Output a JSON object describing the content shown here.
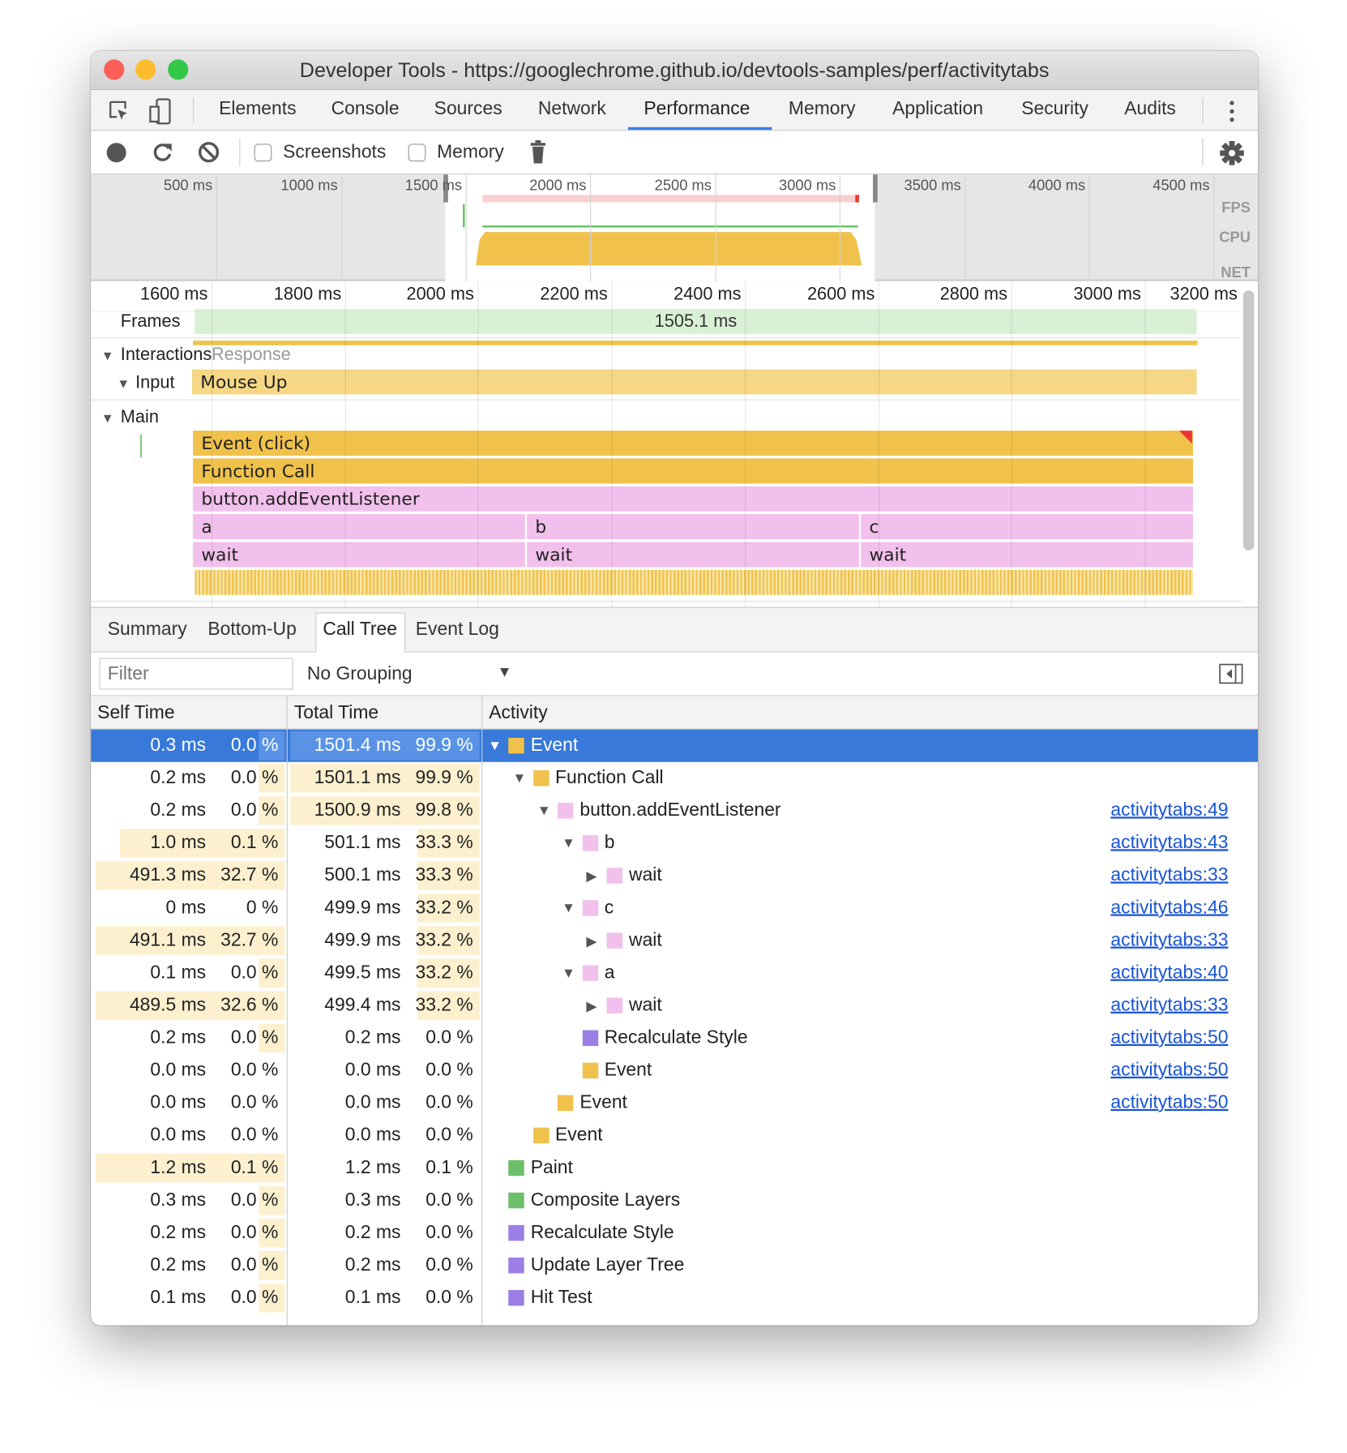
{
  "window": {
    "title": "Developer Tools - https://googlechrome.github.io/devtools-samples/perf/activitytabs",
    "lights": [
      "#fc5f57",
      "#fdbc2e",
      "#34c84a"
    ]
  },
  "tabs": [
    {
      "label": "Elements"
    },
    {
      "label": "Console"
    },
    {
      "label": "Sources"
    },
    {
      "label": "Network"
    },
    {
      "label": "Performance",
      "active": true
    },
    {
      "label": "Memory"
    },
    {
      "label": "Application"
    },
    {
      "label": "Security"
    },
    {
      "label": "Audits"
    }
  ],
  "toolbar": {
    "screenshots_label": "Screenshots",
    "screenshots_checked": false,
    "memory_label": "Memory",
    "memory_checked": false
  },
  "overview": {
    "ticks": [
      "500 ms",
      "1000 ms",
      "1500 ms",
      "2000 ms",
      "2500 ms",
      "3000 ms",
      "3500 ms",
      "4000 ms",
      "4500 ms"
    ],
    "labels": {
      "fps": "FPS",
      "cpu": "CPU",
      "net": "NET"
    }
  },
  "timeline": {
    "ticks": [
      "1600 ms",
      "1800 ms",
      "2000 ms",
      "2200 ms",
      "2400 ms",
      "2600 ms",
      "2800 ms",
      "3000 ms",
      "3200 ms"
    ],
    "frames_label": "Frames",
    "frame_duration": "1505.1 ms",
    "interactions_label": "Interactions",
    "response_label": "Response",
    "input_label": "Input",
    "input_event": "Mouse Up",
    "main_label": "Main",
    "flame": {
      "event": "Event (click)",
      "function_call": "Function Call",
      "listener": "button.addEventListener",
      "a": "a",
      "b": "b",
      "c": "c",
      "wait": "wait"
    }
  },
  "bottom_tabs": [
    {
      "label": "Summary"
    },
    {
      "label": "Bottom-Up"
    },
    {
      "label": "Call Tree",
      "active": true
    },
    {
      "label": "Event Log"
    }
  ],
  "filter": {
    "placeholder": "Filter",
    "grouping": "No Grouping"
  },
  "columns": {
    "self": "Self Time",
    "total": "Total Time",
    "activity": "Activity"
  },
  "colors": {
    "scripting": "#f0c24b",
    "js": "#f2c0ec",
    "rendering": "#9b7fe6",
    "painting": "#6dbf6b",
    "selection": "#3879d9"
  },
  "rows": [
    {
      "self": "0.3 ms",
      "self_pct": "0.0 %",
      "total": "1501.4 ms",
      "total_pct": "99.9 %",
      "name": "Event",
      "depth": 0,
      "toggle": "expanded",
      "cat": "scripting",
      "link": "",
      "selected": true
    },
    {
      "self": "0.2 ms",
      "self_pct": "0.0 %",
      "total": "1501.1 ms",
      "total_pct": "99.9 %",
      "name": "Function Call",
      "depth": 1,
      "toggle": "expanded",
      "cat": "scripting",
      "link": ""
    },
    {
      "self": "0.2 ms",
      "self_pct": "0.0 %",
      "total": "1500.9 ms",
      "total_pct": "99.8 %",
      "name": "button.addEventListener",
      "depth": 2,
      "toggle": "expanded",
      "cat": "js",
      "link": "activitytabs:49"
    },
    {
      "self": "1.0 ms",
      "self_pct": "0.1 %",
      "total": "501.1 ms",
      "total_pct": "33.3 %",
      "name": "b",
      "depth": 3,
      "toggle": "expanded",
      "cat": "js",
      "link": "activitytabs:43"
    },
    {
      "self": "491.3 ms",
      "self_pct": "32.7 %",
      "total": "500.1 ms",
      "total_pct": "33.3 %",
      "name": "wait",
      "depth": 4,
      "toggle": "collapsed",
      "cat": "js",
      "link": "activitytabs:33"
    },
    {
      "self": "0 ms",
      "self_pct": "0 %",
      "total": "499.9 ms",
      "total_pct": "33.2 %",
      "name": "c",
      "depth": 3,
      "toggle": "expanded",
      "cat": "js",
      "link": "activitytabs:46"
    },
    {
      "self": "491.1 ms",
      "self_pct": "32.7 %",
      "total": "499.9 ms",
      "total_pct": "33.2 %",
      "name": "wait",
      "depth": 4,
      "toggle": "collapsed",
      "cat": "js",
      "link": "activitytabs:33"
    },
    {
      "self": "0.1 ms",
      "self_pct": "0.0 %",
      "total": "499.5 ms",
      "total_pct": "33.2 %",
      "name": "a",
      "depth": 3,
      "toggle": "expanded",
      "cat": "js",
      "link": "activitytabs:40"
    },
    {
      "self": "489.5 ms",
      "self_pct": "32.6 %",
      "total": "499.4 ms",
      "total_pct": "33.2 %",
      "name": "wait",
      "depth": 4,
      "toggle": "collapsed",
      "cat": "js",
      "link": "activitytabs:33"
    },
    {
      "self": "0.2 ms",
      "self_pct": "0.0 %",
      "total": "0.2 ms",
      "total_pct": "0.0 %",
      "name": "Recalculate Style",
      "depth": 3,
      "toggle": "",
      "cat": "rendering",
      "link": "activitytabs:50"
    },
    {
      "self": "0.0 ms",
      "self_pct": "0.0 %",
      "total": "0.0 ms",
      "total_pct": "0.0 %",
      "name": "Event",
      "depth": 3,
      "toggle": "",
      "cat": "scripting",
      "link": "activitytabs:50"
    },
    {
      "self": "0.0 ms",
      "self_pct": "0.0 %",
      "total": "0.0 ms",
      "total_pct": "0.0 %",
      "name": "Event",
      "depth": 2,
      "toggle": "",
      "cat": "scripting",
      "link": "activitytabs:50"
    },
    {
      "self": "0.0 ms",
      "self_pct": "0.0 %",
      "total": "0.0 ms",
      "total_pct": "0.0 %",
      "name": "Event",
      "depth": 1,
      "toggle": "",
      "cat": "scripting",
      "link": ""
    },
    {
      "self": "1.2 ms",
      "self_pct": "0.1 %",
      "total": "1.2 ms",
      "total_pct": "0.1 %",
      "name": "Paint",
      "depth": 0,
      "toggle": "",
      "cat": "painting",
      "link": ""
    },
    {
      "self": "0.3 ms",
      "self_pct": "0.0 %",
      "total": "0.3 ms",
      "total_pct": "0.0 %",
      "name": "Composite Layers",
      "depth": 0,
      "toggle": "",
      "cat": "painting",
      "link": ""
    },
    {
      "self": "0.2 ms",
      "self_pct": "0.0 %",
      "total": "0.2 ms",
      "total_pct": "0.0 %",
      "name": "Recalculate Style",
      "depth": 0,
      "toggle": "",
      "cat": "rendering",
      "link": ""
    },
    {
      "self": "0.2 ms",
      "self_pct": "0.0 %",
      "total": "0.2 ms",
      "total_pct": "0.0 %",
      "name": "Update Layer Tree",
      "depth": 0,
      "toggle": "",
      "cat": "rendering",
      "link": ""
    },
    {
      "self": "0.1 ms",
      "self_pct": "0.0 %",
      "total": "0.1 ms",
      "total_pct": "0.0 %",
      "name": "Hit Test",
      "depth": 0,
      "toggle": "",
      "cat": "rendering",
      "link": ""
    }
  ]
}
